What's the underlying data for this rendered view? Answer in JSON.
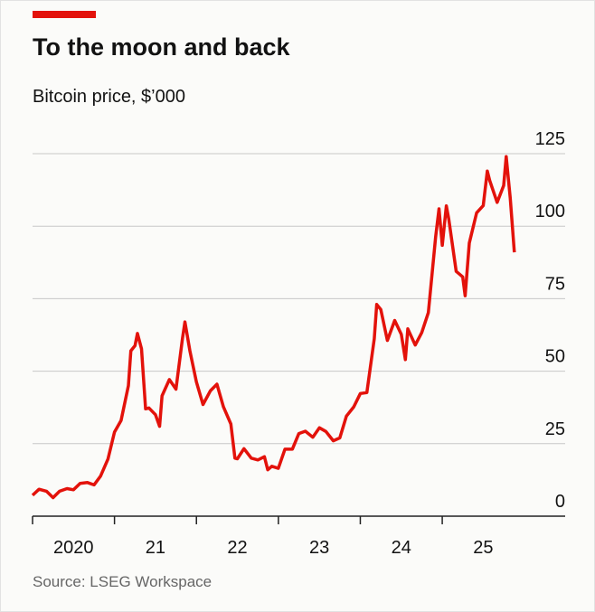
{
  "chart_data": {
    "type": "line",
    "title": "To the moon and back",
    "subtitle": "Bitcoin price, $’000",
    "source": "Source: LSEG Workspace",
    "xlim": [
      2020,
      2026.5
    ],
    "xticks": [
      {
        "value": 2020,
        "label": "2020"
      },
      {
        "value": 2021,
        "label": "21"
      },
      {
        "value": 2022,
        "label": "22"
      },
      {
        "value": 2023,
        "label": "23"
      },
      {
        "value": 2024,
        "label": "24"
      },
      {
        "value": 2025,
        "label": "25"
      }
    ],
    "ylim": [
      0,
      125
    ],
    "yticks": [
      0,
      25,
      50,
      75,
      100,
      125
    ],
    "grid": true,
    "series": [
      {
        "color": "#e3120b",
        "x": [
          2020.0,
          2020.08,
          2020.17,
          2020.25,
          2020.33,
          2020.42,
          2020.5,
          2020.58,
          2020.67,
          2020.75,
          2020.83,
          2020.92,
          2021.0,
          2021.08,
          2021.17,
          2021.2,
          2021.25,
          2021.28,
          2021.33,
          2021.38,
          2021.42,
          2021.5,
          2021.55,
          2021.58,
          2021.67,
          2021.75,
          2021.83,
          2021.86,
          2021.92,
          2022.0,
          2022.08,
          2022.17,
          2022.25,
          2022.33,
          2022.42,
          2022.47,
          2022.5,
          2022.58,
          2022.67,
          2022.75,
          2022.83,
          2022.87,
          2022.92,
          2023.0,
          2023.08,
          2023.17,
          2023.25,
          2023.33,
          2023.42,
          2023.5,
          2023.58,
          2023.67,
          2023.75,
          2023.83,
          2023.92,
          2024.0,
          2024.08,
          2024.17,
          2024.2,
          2024.25,
          2024.33,
          2024.42,
          2024.5,
          2024.55,
          2024.58,
          2024.67,
          2024.75,
          2024.83,
          2024.92,
          2024.96,
          2025.0,
          2025.05,
          2025.08,
          2025.17,
          2025.25,
          2025.28,
          2025.33,
          2025.42,
          2025.5,
          2025.55,
          2025.58,
          2025.67,
          2025.75,
          2025.78,
          2025.83,
          2025.88
        ],
        "values": [
          7.2,
          9.3,
          8.6,
          6.4,
          8.6,
          9.5,
          9.1,
          11.3,
          11.6,
          10.8,
          13.8,
          19.7,
          29.0,
          33,
          45,
          57,
          58.8,
          63,
          57.7,
          37,
          37.3,
          35,
          31,
          41.5,
          47.1,
          43.8,
          61.3,
          67,
          57,
          46.3,
          38.5,
          43.2,
          45.5,
          37.7,
          31.8,
          20,
          19.8,
          23.3,
          20,
          19.4,
          20.5,
          16,
          17.2,
          16.5,
          23.1,
          23.1,
          28.5,
          29.3,
          27.2,
          30.5,
          29.2,
          26,
          27,
          34.5,
          37.7,
          42.3,
          42.6,
          61.2,
          73,
          71.3,
          60.6,
          67.5,
          62.7,
          54,
          64.6,
          59,
          63.3,
          70.2,
          96.4,
          106,
          93.4,
          107,
          102.4,
          84.4,
          82.5,
          76,
          94.2,
          104.6,
          107.1,
          119,
          115.7,
          108.2,
          114,
          124,
          109.6,
          91
        ]
      }
    ]
  }
}
